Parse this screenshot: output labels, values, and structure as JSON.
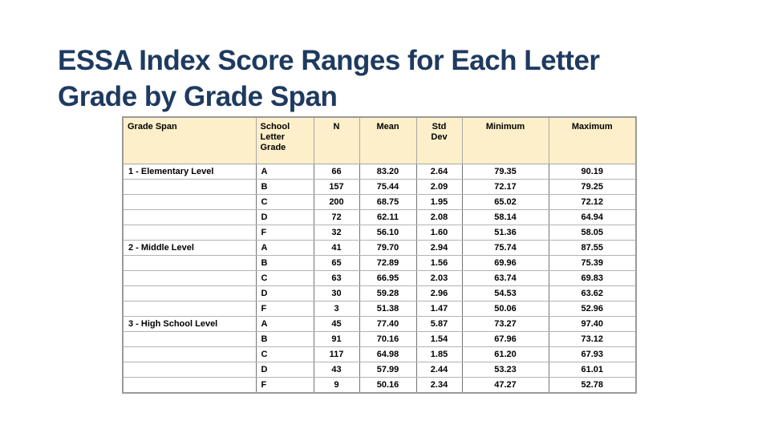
{
  "slide": {
    "title_lines": [
      "ESSA Index Score Ranges for Each Letter",
      "Grade by Grade Span"
    ],
    "title_color": "#1E3A5F"
  },
  "table": {
    "header_bg": "#FCEFC9",
    "border_color": "#9A9A9A",
    "columns": [
      "Grade Span",
      "School Letter Grade",
      "N",
      "Mean",
      "Std Dev",
      "Minimum",
      "Maximum"
    ],
    "rows": [
      {
        "grade_span": "1 - Elementary Level",
        "letter": "A",
        "n": "66",
        "mean": "83.20",
        "std_dev": "2.64",
        "min": "79.35",
        "max": "90.19"
      },
      {
        "grade_span": "",
        "letter": "B",
        "n": "157",
        "mean": "75.44",
        "std_dev": "2.09",
        "min": "72.17",
        "max": "79.25"
      },
      {
        "grade_span": "",
        "letter": "C",
        "n": "200",
        "mean": "68.75",
        "std_dev": "1.95",
        "min": "65.02",
        "max": "72.12"
      },
      {
        "grade_span": "",
        "letter": "D",
        "n": "72",
        "mean": "62.11",
        "std_dev": "2.08",
        "min": "58.14",
        "max": "64.94"
      },
      {
        "grade_span": "",
        "letter": "F",
        "n": "32",
        "mean": "56.10",
        "std_dev": "1.60",
        "min": "51.36",
        "max": "58.05"
      },
      {
        "grade_span": "2 - Middle Level",
        "letter": "A",
        "n": "41",
        "mean": "79.70",
        "std_dev": "2.94",
        "min": "75.74",
        "max": "87.55"
      },
      {
        "grade_span": "",
        "letter": "B",
        "n": "65",
        "mean": "72.89",
        "std_dev": "1.56",
        "min": "69.96",
        "max": "75.39"
      },
      {
        "grade_span": "",
        "letter": "C",
        "n": "63",
        "mean": "66.95",
        "std_dev": "2.03",
        "min": "63.74",
        "max": "69.83"
      },
      {
        "grade_span": "",
        "letter": "D",
        "n": "30",
        "mean": "59.28",
        "std_dev": "2.96",
        "min": "54.53",
        "max": "63.62"
      },
      {
        "grade_span": "",
        "letter": "F",
        "n": "3",
        "mean": "51.38",
        "std_dev": "1.47",
        "min": "50.06",
        "max": "52.96"
      },
      {
        "grade_span": "3 - High School Level",
        "letter": "A",
        "n": "45",
        "mean": "77.40",
        "std_dev": "5.87",
        "min": "73.27",
        "max": "97.40"
      },
      {
        "grade_span": "",
        "letter": "B",
        "n": "91",
        "mean": "70.16",
        "std_dev": "1.54",
        "min": "67.96",
        "max": "73.12"
      },
      {
        "grade_span": "",
        "letter": "C",
        "n": "117",
        "mean": "64.98",
        "std_dev": "1.85",
        "min": "61.20",
        "max": "67.93"
      },
      {
        "grade_span": "",
        "letter": "D",
        "n": "43",
        "mean": "57.99",
        "std_dev": "2.44",
        "min": "53.23",
        "max": "61.01"
      },
      {
        "grade_span": "",
        "letter": "F",
        "n": "9",
        "mean": "50.16",
        "std_dev": "2.34",
        "min": "47.27",
        "max": "52.78"
      }
    ]
  }
}
